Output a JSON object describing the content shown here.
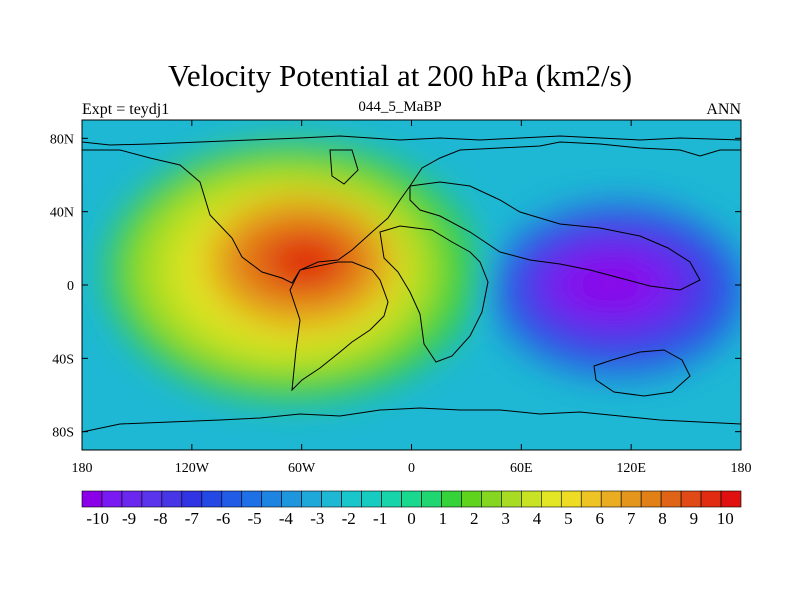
{
  "chart_data": {
    "type": "heatmap",
    "title": "Velocity Potential at 200 hPa (km2/s)",
    "left_label": "Expt = teydj1",
    "center_label": "044_5_MaBP",
    "right_label": "ANN",
    "x_range": [
      -180,
      180
    ],
    "y_range": [
      -90,
      90
    ],
    "x_ticks": [
      {
        "value": -180,
        "label": "180"
      },
      {
        "value": -120,
        "label": "120W"
      },
      {
        "value": -60,
        "label": "60W"
      },
      {
        "value": 0,
        "label": "0"
      },
      {
        "value": 60,
        "label": "60E"
      },
      {
        "value": 120,
        "label": "120E"
      },
      {
        "value": 180,
        "label": "180"
      }
    ],
    "y_ticks": [
      {
        "value": 80,
        "label": "80N"
      },
      {
        "value": 40,
        "label": "40N"
      },
      {
        "value": 0,
        "label": "0"
      },
      {
        "value": -40,
        "label": "40S"
      },
      {
        "value": -80,
        "label": "80S"
      }
    ],
    "field_extrema": [
      {
        "name": "positive-center",
        "lon": -55,
        "lat": 15,
        "value": 10
      },
      {
        "name": "negative-center",
        "lon": 120,
        "lat": 5,
        "value": -10
      }
    ],
    "colorbar": {
      "min": -10.5,
      "max": 10.5,
      "labels": [
        "-10",
        "-9",
        "-8",
        "-7",
        "-6",
        "-5",
        "-4",
        "-3",
        "-2",
        "-1",
        "0",
        "1",
        "2",
        "3",
        "4",
        "5",
        "6",
        "7",
        "8",
        "9",
        "10"
      ],
      "colors": [
        "#8a00e8",
        "#7a1af2",
        "#6a28ee",
        "#5a33ec",
        "#4636e6",
        "#3034e2",
        "#2448e4",
        "#205ce6",
        "#1e70e6",
        "#1e84e2",
        "#1e96de",
        "#1ea8da",
        "#1eb8d4",
        "#18c6cc",
        "#16ccc0",
        "#18d4aa",
        "#1ad88e",
        "#20d670",
        "#36d23a",
        "#60d41c",
        "#84d620",
        "#a8dc24",
        "#c8e224",
        "#e2e624",
        "#eedc24",
        "#eec424",
        "#eaac20",
        "#e4961c",
        "#e28018",
        "#e06418",
        "#e04a16",
        "#e22c12",
        "#e01010"
      ]
    }
  }
}
